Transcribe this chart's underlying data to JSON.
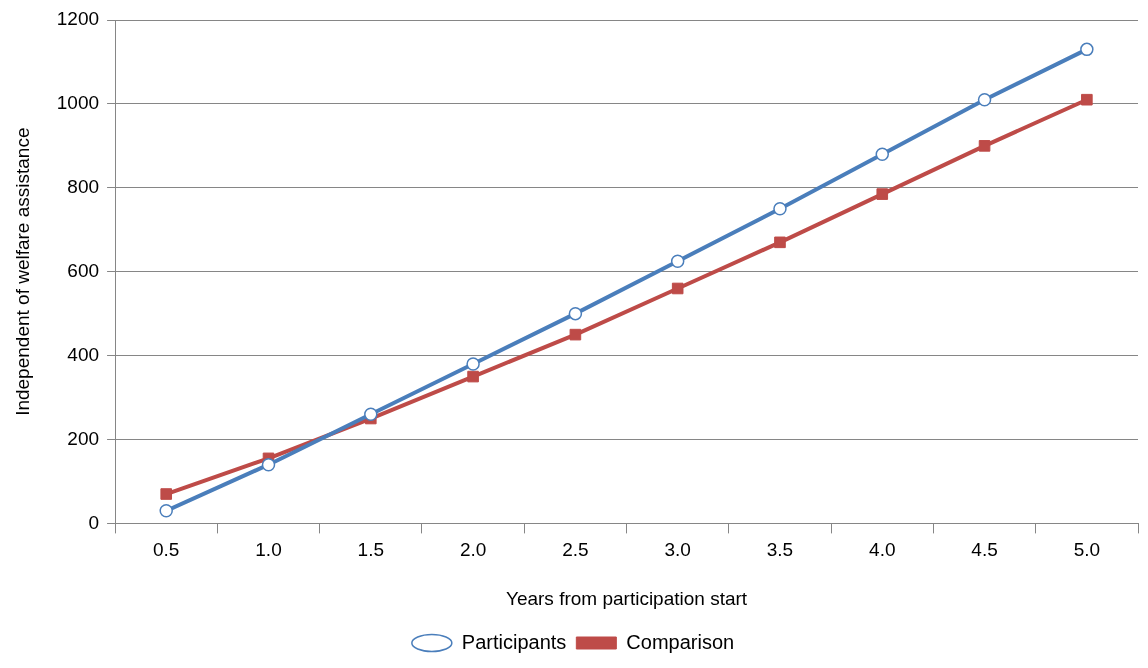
{
  "chart_data": {
    "type": "line",
    "xlabel": "Years from participation start",
    "ylabel": "Independent of welfare assistance",
    "categories": [
      "0.5",
      "1.0",
      "1.5",
      "2.0",
      "2.5",
      "3.0",
      "3.5",
      "4.0",
      "4.5",
      "5.0"
    ],
    "series": [
      {
        "name": "Participants",
        "color": "#4a7ebb",
        "marker": "circle",
        "values": [
          30,
          140,
          260,
          380,
          500,
          625,
          750,
          880,
          1010,
          1130
        ]
      },
      {
        "name": "Comparison",
        "color": "#be4b48",
        "marker": "square",
        "values": [
          70,
          155,
          250,
          350,
          450,
          560,
          670,
          785,
          900,
          1010
        ]
      }
    ],
    "ylim": [
      0,
      1200
    ],
    "yticks": [
      0,
      200,
      400,
      600,
      800,
      1000,
      1200
    ],
    "grid": "y",
    "legend": "bottom",
    "line_style": "solid"
  }
}
